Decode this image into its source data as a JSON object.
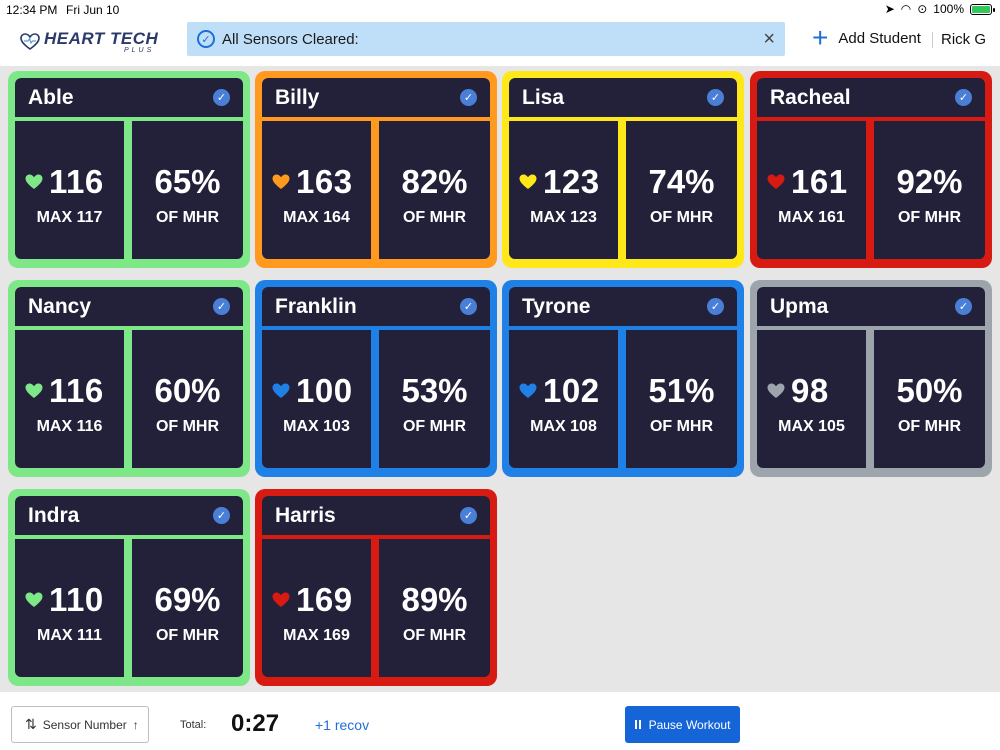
{
  "status_bar": {
    "time": "12:34 PM",
    "date": "Fri Jun 10",
    "battery": "100%"
  },
  "header": {
    "logo_main": "HEART TECH",
    "logo_sub": "PLUS",
    "banner_message": "All Sensors Cleared:",
    "add_student_label": "Add Student",
    "user_name": "Rick G"
  },
  "students": [
    {
      "name": "Able",
      "bpm": "116",
      "max": "MAX 117",
      "pct": "65%",
      "mhr": "OF MHR",
      "color": "#7ee787"
    },
    {
      "name": "Billy",
      "bpm": "163",
      "max": "MAX 164",
      "pct": "82%",
      "mhr": "OF MHR",
      "color": "#ff9a1f"
    },
    {
      "name": "Lisa",
      "bpm": "123",
      "max": "MAX 123",
      "pct": "74%",
      "mhr": "OF MHR",
      "color": "#ffe81a"
    },
    {
      "name": "Racheal",
      "bpm": "161",
      "max": "MAX 161",
      "pct": "92%",
      "mhr": "OF MHR",
      "color": "#d81b12"
    },
    {
      "name": "Nancy",
      "bpm": "116",
      "max": "MAX 116",
      "pct": "60%",
      "mhr": "OF MHR",
      "color": "#7ee787"
    },
    {
      "name": "Franklin",
      "bpm": "100",
      "max": "MAX 103",
      "pct": "53%",
      "mhr": "OF MHR",
      "color": "#1f80e6"
    },
    {
      "name": "Tyrone",
      "bpm": "102",
      "max": "MAX 108",
      "pct": "51%",
      "mhr": "OF MHR",
      "color": "#1f80e6"
    },
    {
      "name": "Upma",
      "bpm": "98",
      "max": "MAX 105",
      "pct": "50%",
      "mhr": "OF MHR",
      "color": "#9ea4ab"
    },
    {
      "name": "Indra",
      "bpm": "110",
      "max": "MAX 111",
      "pct": "69%",
      "mhr": "OF MHR",
      "color": "#7ee787"
    },
    {
      "name": "Harris",
      "bpm": "169",
      "max": "MAX 169",
      "pct": "89%",
      "mhr": "OF MHR",
      "color": "#d81b12"
    }
  ],
  "footer": {
    "sort_label": "Sensor Number",
    "total_label": "Total:",
    "total_time": "0:27",
    "recov_label": "+1 recov",
    "pause_label": "Pause Workout"
  }
}
